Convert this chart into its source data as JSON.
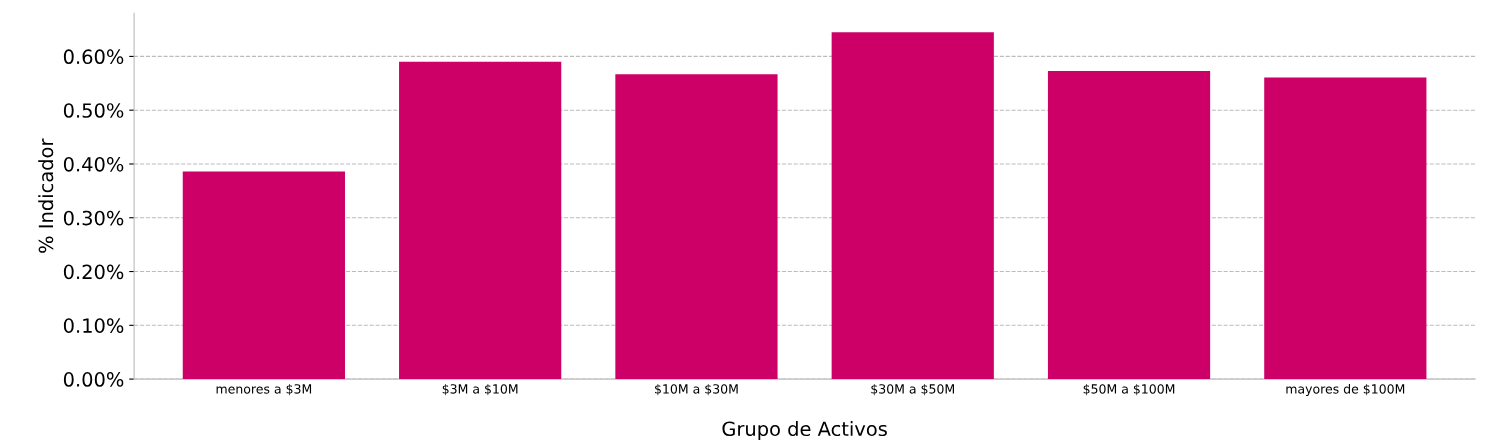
{
  "chart_data": {
    "type": "bar",
    "xlabel": "Grupo de Activos",
    "ylabel": "% Indicador",
    "categories": [
      "menores a $3M",
      "$3M a $10M",
      "$10M a $30M",
      "$30M a $50M",
      "$50M a $100M",
      "mayores de $100M"
    ],
    "values": [
      0.386,
      0.59,
      0.567,
      0.645,
      0.573,
      0.561
    ],
    "color": "#cc0066",
    "ylim": [
      0,
      0.68
    ],
    "yticks": [
      {
        "value": 0,
        "label": "0.00%"
      },
      {
        "value": 0.1,
        "label": "0.10%"
      },
      {
        "value": 0.2,
        "label": "0.20%"
      },
      {
        "value": 0.3,
        "label": "0.30%"
      },
      {
        "value": 0.4,
        "label": "0.40%"
      },
      {
        "value": 0.5,
        "label": "0.50%"
      },
      {
        "value": 0.6,
        "label": "0.60%"
      }
    ],
    "grid": "y",
    "line_style": "dashed"
  }
}
